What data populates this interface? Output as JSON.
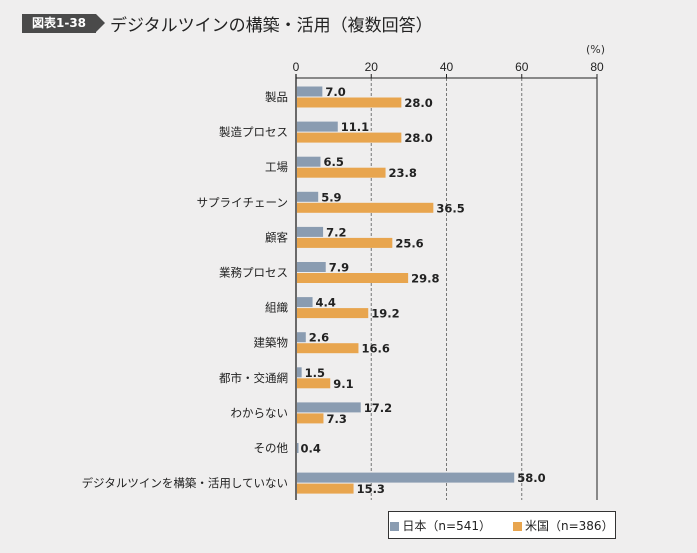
{
  "figure": {
    "badge": "図表1-38",
    "title": "デジタルツインの構築・活用（複数回答）",
    "unit": "(%)"
  },
  "chart_data": {
    "type": "bar",
    "orientation": "horizontal",
    "title": "デジタルツインの構築・活用（複数回答）",
    "xlim": [
      0,
      80
    ],
    "ticks": [
      0,
      20,
      40,
      60,
      80
    ],
    "grid": true,
    "legend_position": "bottom-right",
    "categories": [
      "製品",
      "製造プロセス",
      "工場",
      "サプライチェーン",
      "顧客",
      "業務プロセス",
      "組織",
      "建築物",
      "都市・交通網",
      "わからない",
      "その他",
      "デジタルツインを構築・活用していない"
    ],
    "series": [
      {
        "name": "日本（n=541）",
        "color": "#8a9cb1",
        "values": [
          7.0,
          11.1,
          6.5,
          5.9,
          7.2,
          7.9,
          4.4,
          2.6,
          1.5,
          17.2,
          0.4,
          58.0
        ]
      },
      {
        "name": "米国（n=386）",
        "color": "#e8a54e",
        "values": [
          28.0,
          28.0,
          23.8,
          36.5,
          25.6,
          29.8,
          19.2,
          16.6,
          9.1,
          7.3,
          null,
          15.3
        ]
      }
    ]
  }
}
